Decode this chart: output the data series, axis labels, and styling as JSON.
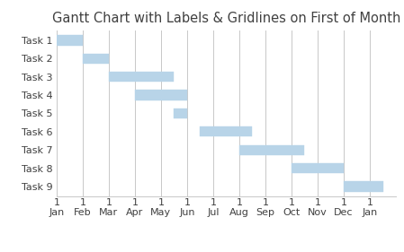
{
  "title": "Gantt Chart with Labels & Gridlines on First of Month",
  "tasks": [
    "Task 1",
    "Task 2",
    "Task 3",
    "Task 4",
    "Task 5",
    "Task 6",
    "Task 7",
    "Task 8",
    "Task 9"
  ],
  "task_starts": [
    0,
    1,
    2,
    3,
    4.5,
    5.5,
    7,
    9,
    11
  ],
  "task_durations": [
    1,
    1,
    2.5,
    2,
    0.5,
    2,
    2.5,
    2,
    1.5
  ],
  "bar_color": "#b8d4e8",
  "bar_edge_color": "#b8d4e8",
  "bar_height": 0.55,
  "xlim": [
    0,
    13
  ],
  "month_positions": [
    0,
    1,
    2,
    3,
    4,
    5,
    6,
    7,
    8,
    9,
    10,
    11,
    12
  ],
  "month_labels": [
    "Jan",
    "Feb",
    "Mar",
    "Apr",
    "May",
    "Jun",
    "Jul",
    "Aug",
    "Sep",
    "Oct",
    "Nov",
    "Dec",
    "Jan"
  ],
  "grid_color": "#c8c8c8",
  "background_color": "#ffffff",
  "title_fontsize": 10.5,
  "label_fontsize": 8,
  "title_color": "#404040",
  "tick_color": "#404040"
}
